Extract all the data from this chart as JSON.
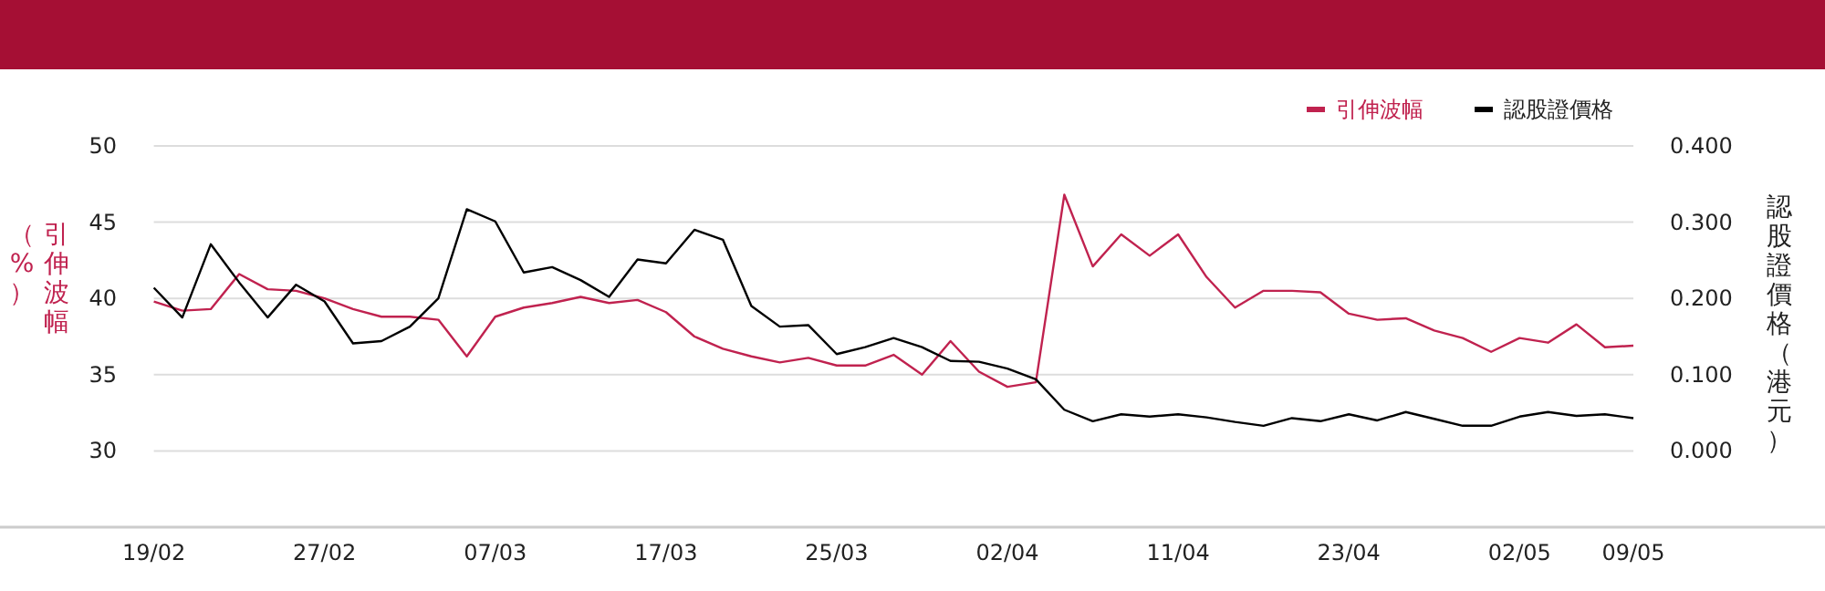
{
  "chart_data": {
    "type": "line",
    "categories": [
      "19/02",
      null,
      null,
      null,
      null,
      null,
      "27/02",
      null,
      null,
      null,
      null,
      null,
      "07/03",
      null,
      null,
      null,
      null,
      null,
      "17/03",
      null,
      null,
      null,
      null,
      null,
      "25/03",
      null,
      null,
      null,
      null,
      null,
      "02/04",
      null,
      null,
      null,
      null,
      null,
      "11/04",
      null,
      null,
      null,
      null,
      null,
      "23/04",
      null,
      null,
      null,
      null,
      null,
      "02/05",
      null,
      null,
      null,
      "09/05"
    ],
    "series": [
      {
        "name": "引伸波幅",
        "color": "#c0224f",
        "values": [
          39.8,
          39.2,
          39.3,
          41.6,
          40.6,
          40.5,
          40.0,
          39.3,
          38.8,
          38.8,
          38.6,
          36.2,
          38.8,
          39.4,
          39.7,
          40.1,
          39.7,
          39.9,
          39.1,
          37.5,
          36.7,
          36.2,
          35.8,
          36.1,
          35.6,
          35.6,
          36.3,
          35.0,
          37.2,
          35.2,
          34.2,
          34.5,
          46.8,
          42.1,
          44.2,
          42.8,
          44.2,
          41.4,
          39.4,
          40.5,
          40.5,
          40.4,
          39.0,
          38.6,
          38.7,
          37.9,
          37.4,
          36.5,
          37.4,
          37.1,
          38.3,
          36.8,
          36.9
        ]
      },
      {
        "name": "認股證價格",
        "color": "#000000",
        "axis": "y2",
        "values": [
          0.214,
          0.175,
          0.271,
          0.221,
          0.175,
          0.218,
          0.196,
          0.141,
          0.144,
          0.163,
          0.2,
          0.317,
          0.301,
          0.234,
          0.241,
          0.224,
          0.202,
          0.251,
          0.246,
          0.29,
          0.277,
          0.19,
          0.163,
          0.165,
          0.127,
          0.136,
          0.148,
          0.136,
          0.118,
          0.117,
          0.108,
          0.094,
          0.054,
          0.039,
          0.048,
          0.045,
          0.048,
          0.044,
          0.038,
          0.033,
          0.043,
          0.039,
          0.048,
          0.04,
          0.051,
          0.042,
          0.033,
          0.033,
          0.045,
          0.051,
          0.046,
          0.048,
          0.043
        ]
      }
    ],
    "ylabel": "引伸波幅（%）",
    "y2label": "認股證價格（港元）",
    "ylim": [
      25,
      50
    ],
    "yticks": [
      30,
      35,
      40,
      45,
      50
    ],
    "y2lim": [
      -0.1,
      0.4
    ],
    "y2ticks": [
      {
        "value": 0,
        "label": "0.000"
      },
      {
        "value": 0.1,
        "label": "0.100"
      },
      {
        "value": 0.2,
        "label": "0.200"
      },
      {
        "value": 0.3,
        "label": "0.300"
      },
      {
        "value": 0.4,
        "label": "0.400"
      }
    ],
    "grid": "y",
    "legend": "top right"
  }
}
